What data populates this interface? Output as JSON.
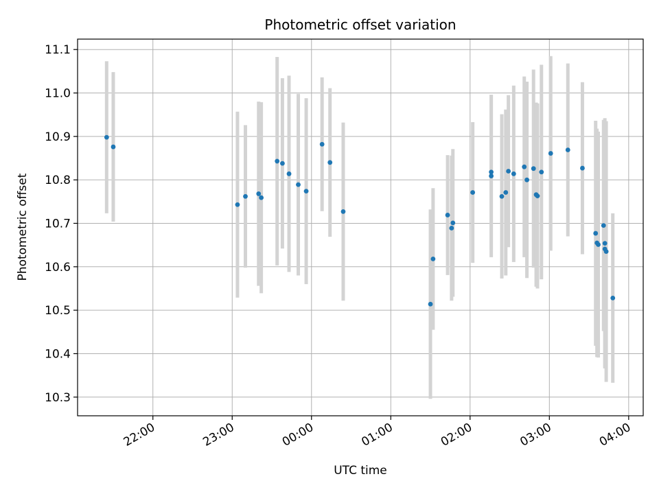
{
  "chart_data": {
    "type": "scatter",
    "title": "Photometric offset variation",
    "xlabel": "UTC time",
    "ylabel": "Photometric offset",
    "x_tick_labels": [
      "22:00",
      "23:00",
      "00:00",
      "01:00",
      "02:00",
      "03:00",
      "04:00"
    ],
    "y_tick_labels": [
      "10.3",
      "10.4",
      "10.5",
      "10.6",
      "10.7",
      "10.8",
      "10.9",
      "11.0",
      "11.1"
    ],
    "y_ticks": [
      10.3,
      10.4,
      10.5,
      10.6,
      10.7,
      10.8,
      10.9,
      11.0,
      11.1
    ],
    "xlim": [
      "21:03",
      "04:11"
    ],
    "ylim": [
      10.257,
      11.124
    ],
    "grid": true,
    "point_color": "#1f77b4",
    "errorbar_color": "#d3d3d3",
    "series": [
      {
        "x": [
          "21:25",
          "21:30",
          "23:04",
          "23:10",
          "23:20",
          "23:22",
          "23:34",
          "23:38",
          "23:43",
          "23:50",
          "23:56",
          "00:08",
          "00:14",
          "00:24",
          "01:30",
          "01:32",
          "01:43",
          "01:46",
          "01:47",
          "02:02",
          "02:16",
          "02:16",
          "02:24",
          "02:27",
          "02:29",
          "02:33",
          "02:41",
          "02:43",
          "02:48",
          "02:50",
          "02:51",
          "02:54",
          "03:01",
          "03:14",
          "03:25",
          "03:35",
          "03:36",
          "03:37",
          "03:41",
          "03:42",
          "03:42",
          "03:43",
          "03:48"
        ],
        "y": [
          10.898,
          10.876,
          10.743,
          10.762,
          10.768,
          10.759,
          10.843,
          10.838,
          10.814,
          10.789,
          10.774,
          10.882,
          10.84,
          10.727,
          10.514,
          10.618,
          10.719,
          10.689,
          10.701,
          10.771,
          10.818,
          10.809,
          10.762,
          10.771,
          10.82,
          10.814,
          10.83,
          10.8,
          10.826,
          10.766,
          10.763,
          10.818,
          10.861,
          10.869,
          10.827,
          10.677,
          10.655,
          10.651,
          10.695,
          10.654,
          10.641,
          10.635,
          10.528
        ],
        "yerr": [
          0.175,
          0.172,
          0.214,
          0.164,
          0.212,
          0.22,
          0.24,
          0.196,
          0.226,
          0.209,
          0.214,
          0.154,
          0.171,
          0.205,
          0.218,
          0.163,
          0.138,
          0.167,
          0.17,
          0.162,
          0.178,
          0.187,
          0.189,
          0.191,
          0.175,
          0.203,
          0.208,
          0.226,
          0.228,
          0.212,
          0.213,
          0.247,
          0.224,
          0.199,
          0.198,
          0.259,
          0.263,
          0.26,
          0.243,
          0.288,
          0.272,
          0.3,
          0.195
        ]
      }
    ]
  }
}
